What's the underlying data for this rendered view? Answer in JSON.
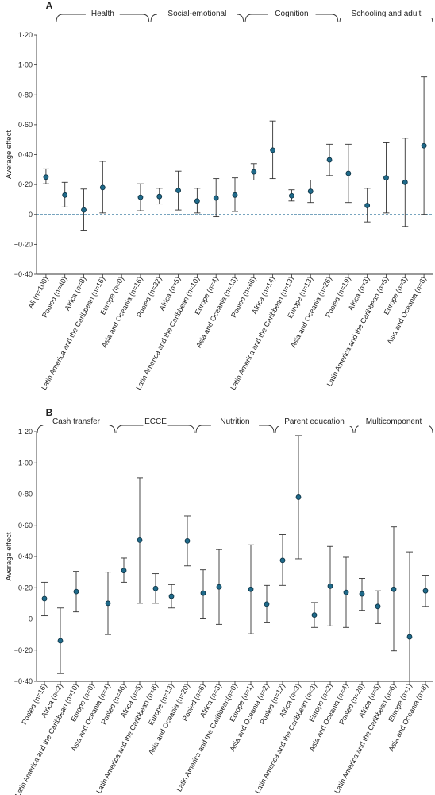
{
  "chart_data": [
    {
      "type": "scatter",
      "panel": "A",
      "ylabel": "Average effect",
      "ylim": [
        -0.4,
        1.2
      ],
      "yticks": [
        "1·20",
        "1·00",
        "0·80",
        "0·60",
        "0·40",
        "0·20",
        "0",
        "−0·20",
        "−0·40"
      ],
      "groups": [
        {
          "label": "Health",
          "start": 1,
          "end": 5
        },
        {
          "label": "Social-emotional",
          "start": 6,
          "end": 10
        },
        {
          "label": "Cognition",
          "start": 11,
          "end": 15
        },
        {
          "label": "Schooling and adult",
          "start": 16,
          "end": 20
        }
      ],
      "categories": [
        "All (n=100)",
        "Pooled (n=40)",
        "Africa (n=8)",
        "Latin America and the Caribbean (n=16)",
        "Europe (n=0)",
        "Asia and Oceania (n=16)",
        "Pooled (n=32)",
        "Africa (n=5)",
        "Latin America and the Caribbean (n=10)",
        "Europe (n=4)",
        "Asia and Oceania (n=13)",
        "Pooled (n=66)",
        "Africa (n=14)",
        "Latin America and the Caribbean (n=13)",
        "Europe (n=13)",
        "Asia and Oceania (n=26)",
        "Pooled (n=19)",
        "Africa (n=3)",
        "Latin America and the Caribbean (n=5)",
        "Europe (n=3)",
        "Asia and Oceania (n=8)"
      ],
      "estimate": [
        0.25,
        0.13,
        0.03,
        0.18,
        null,
        0.115,
        0.12,
        0.16,
        0.09,
        0.11,
        0.13,
        0.285,
        0.43,
        0.125,
        0.155,
        0.365,
        0.275,
        0.06,
        0.245,
        0.215,
        0.46
      ],
      "lower": [
        0.205,
        0.05,
        -0.105,
        0.01,
        null,
        0.025,
        0.07,
        0.03,
        0.01,
        -0.015,
        0.02,
        0.23,
        0.24,
        0.09,
        0.08,
        0.26,
        0.08,
        -0.05,
        0.01,
        -0.08,
        0.0
      ],
      "upper": [
        0.305,
        0.215,
        0.17,
        0.355,
        null,
        0.205,
        0.175,
        0.29,
        0.175,
        0.24,
        0.245,
        0.34,
        0.625,
        0.165,
        0.23,
        0.47,
        0.47,
        0.175,
        0.48,
        0.51,
        0.92
      ]
    },
    {
      "type": "scatter",
      "panel": "B",
      "ylabel": "Average effect",
      "ylim": [
        -0.4,
        1.2
      ],
      "yticks": [
        "1·20",
        "1·00",
        "0·80",
        "0·60",
        "0·40",
        "0·20",
        "0",
        "−0·20",
        "−0·40"
      ],
      "groups": [
        {
          "label": "Cash transfer",
          "start": 0,
          "end": 4
        },
        {
          "label": "ECCE",
          "start": 5,
          "end": 9
        },
        {
          "label": "Nutrition",
          "start": 10,
          "end": 14
        },
        {
          "label": "Parent education",
          "start": 15,
          "end": 19
        },
        {
          "label": "Multicomponent",
          "start": 20,
          "end": 24
        }
      ],
      "categories": [
        "Pooled (n=16)",
        "Africa (n=2)",
        "Latin America and the Caribbean (n=10)",
        "Europe (n=0)",
        "Asia and Oceania (n=4)",
        "Pooled (n=46)",
        "Africa (n=5)",
        "Latin America and the Caribbean (n=8)",
        "Europe (n=13)",
        "Asia and Oceania (n=20)",
        "Pooled (n=6)",
        "Africa (n=3)",
        "Latin America and the Caribbean(n=0)",
        "Europe (n=1)",
        "Asia and Oceania (n=2)",
        "Pooled (n=12)",
        "Africa (n=3)",
        "Latin America and the Caribbean (n=3)",
        "Europe (n=2)",
        "Asia and Oceania (n=4)",
        "Pooled (n=20)",
        "Africa (n=5)",
        "Latin America and the Caribbean (n=6)",
        "Europe (n=1)",
        "Asia and Oceania (n=8)"
      ],
      "estimate": [
        0.13,
        -0.14,
        0.175,
        null,
        0.1,
        0.31,
        0.505,
        0.195,
        0.145,
        0.5,
        0.165,
        0.205,
        null,
        0.19,
        0.095,
        0.375,
        0.78,
        0.025,
        0.21,
        0.17,
        0.16,
        0.08,
        0.19,
        -0.115,
        0.18
      ],
      "lower": [
        0.02,
        -0.35,
        0.045,
        null,
        -0.1,
        0.235,
        0.1,
        0.1,
        0.07,
        0.34,
        0.005,
        -0.035,
        null,
        -0.095,
        -0.025,
        0.215,
        0.385,
        -0.055,
        -0.045,
        -0.055,
        0.055,
        -0.03,
        -0.205,
        -0.4,
        0.08
      ],
      "upper": [
        0.235,
        0.07,
        0.305,
        null,
        0.3,
        0.39,
        0.905,
        0.29,
        0.22,
        0.66,
        0.315,
        0.445,
        null,
        0.475,
        0.215,
        0.54,
        1.175,
        0.105,
        0.465,
        0.395,
        0.26,
        0.18,
        0.59,
        0.43,
        0.28
      ]
    }
  ]
}
